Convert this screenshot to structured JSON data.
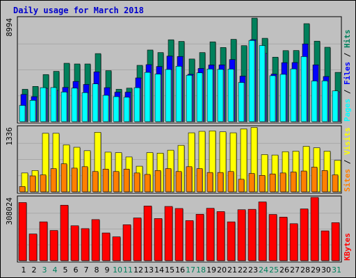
{
  "chart_data": [
    {
      "type": "bar",
      "title": "Daily usage for March 2018",
      "panel": "hits",
      "ymax": 8994,
      "ymax_label": "8994",
      "right_labels": [
        "Pages",
        "Files",
        "Hits"
      ],
      "x": [
        "1",
        "2",
        "3",
        "4",
        "5",
        "6",
        "7",
        "8",
        "9",
        "10",
        "11",
        "12",
        "13",
        "14",
        "15",
        "16",
        "17",
        "18",
        "19",
        "20",
        "21",
        "22",
        "23",
        "24",
        "25",
        "26",
        "27",
        "28",
        "29",
        "30",
        "31"
      ],
      "weekend_days": [
        "3",
        "4",
        "10",
        "11",
        "17",
        "18",
        "24",
        "25",
        "31"
      ],
      "series": [
        {
          "name": "Hits",
          "color": "#00805c",
          "values": [
            2810,
            3060,
            4090,
            4370,
            5070,
            5010,
            5010,
            5910,
            4430,
            2810,
            2910,
            4890,
            6220,
            6000,
            7110,
            6970,
            5440,
            6000,
            6930,
            6440,
            7150,
            6600,
            8990,
            7240,
            5600,
            6170,
            6180,
            8510,
            6990,
            6460,
            4280
          ]
        },
        {
          "name": "Files",
          "color": "#0000ff",
          "values": [
            2360,
            2170,
            2900,
            2720,
            2970,
            3490,
            3230,
            4320,
            2950,
            2560,
            2560,
            3800,
            4950,
            4790,
            5690,
            5660,
            4110,
            4620,
            4920,
            4930,
            5390,
            3950,
            7120,
            5940,
            4130,
            5120,
            5130,
            6750,
            4930,
            3920,
            2590
          ]
        },
        {
          "name": "Pages",
          "color": "#00ffff",
          "values": [
            1410,
            1850,
            2950,
            2960,
            2570,
            2910,
            2520,
            3280,
            2290,
            2170,
            2120,
            2950,
            4280,
            4130,
            4530,
            4810,
            4030,
            4240,
            4570,
            4540,
            4560,
            3400,
            7050,
            6610,
            3990,
            4110,
            4580,
            5650,
            3530,
            3540,
            2670
          ]
        }
      ]
    },
    {
      "type": "bar",
      "panel": "visits",
      "ymax": 1336,
      "ymax_label": "1336",
      "right_labels": [
        "Sites",
        "Visits"
      ],
      "x": [
        "1",
        "2",
        "3",
        "4",
        "5",
        "6",
        "7",
        "8",
        "9",
        "10",
        "11",
        "12",
        "13",
        "14",
        "15",
        "16",
        "17",
        "18",
        "19",
        "20",
        "21",
        "22",
        "23",
        "24",
        "25",
        "26",
        "27",
        "28",
        "29",
        "30",
        "31"
      ],
      "series": [
        {
          "name": "Visits",
          "color": "#ffff00",
          "values": [
            390,
            440,
            1210,
            1210,
            970,
            920,
            850,
            1230,
            820,
            810,
            720,
            530,
            810,
            800,
            860,
            960,
            1220,
            1250,
            1260,
            1240,
            1220,
            1300,
            1330,
            770,
            760,
            830,
            840,
            940,
            910,
            840,
            650
          ]
        },
        {
          "name": "Sites",
          "color": "#ff8000",
          "values": [
            110,
            330,
            350,
            480,
            580,
            490,
            520,
            420,
            470,
            420,
            470,
            390,
            360,
            440,
            480,
            420,
            520,
            480,
            400,
            400,
            420,
            260,
            380,
            340,
            370,
            390,
            410,
            430,
            510,
            440,
            350
          ]
        }
      ]
    },
    {
      "type": "bar",
      "panel": "kbytes",
      "ymax": 308024,
      "ymax_label": "308024",
      "right_labels": [
        "KBytes"
      ],
      "x": [
        "1",
        "2",
        "3",
        "4",
        "5",
        "6",
        "7",
        "8",
        "9",
        "10",
        "11",
        "12",
        "13",
        "14",
        "15",
        "16",
        "17",
        "18",
        "19",
        "20",
        "21",
        "22",
        "23",
        "24",
        "25",
        "26",
        "27",
        "28",
        "29",
        "30",
        "31"
      ],
      "series": [
        {
          "name": "KBytes",
          "color": "#ff0000",
          "values": [
            283000,
            130000,
            189000,
            147000,
            270000,
            170000,
            156000,
            200000,
            135000,
            116000,
            175000,
            208000,
            266000,
            205000,
            264000,
            254000,
            195000,
            226000,
            255000,
            239000,
            189000,
            248000,
            250000,
            286000,
            225000,
            212000,
            180000,
            252000,
            308000,
            145000,
            185000
          ]
        }
      ]
    }
  ],
  "colors": {
    "background": "#c0c0c0",
    "plot_bg": "#c0c0c0",
    "weekday_label": "#000000",
    "weekend_label": "#00805c",
    "title": "#0000cc",
    "Pages": "#00ffff",
    "Files": "#0000ff",
    "Hits": "#00805c",
    "Sites": "#ff8000",
    "Visits": "#ffff00",
    "KBytes": "#ff0000"
  }
}
